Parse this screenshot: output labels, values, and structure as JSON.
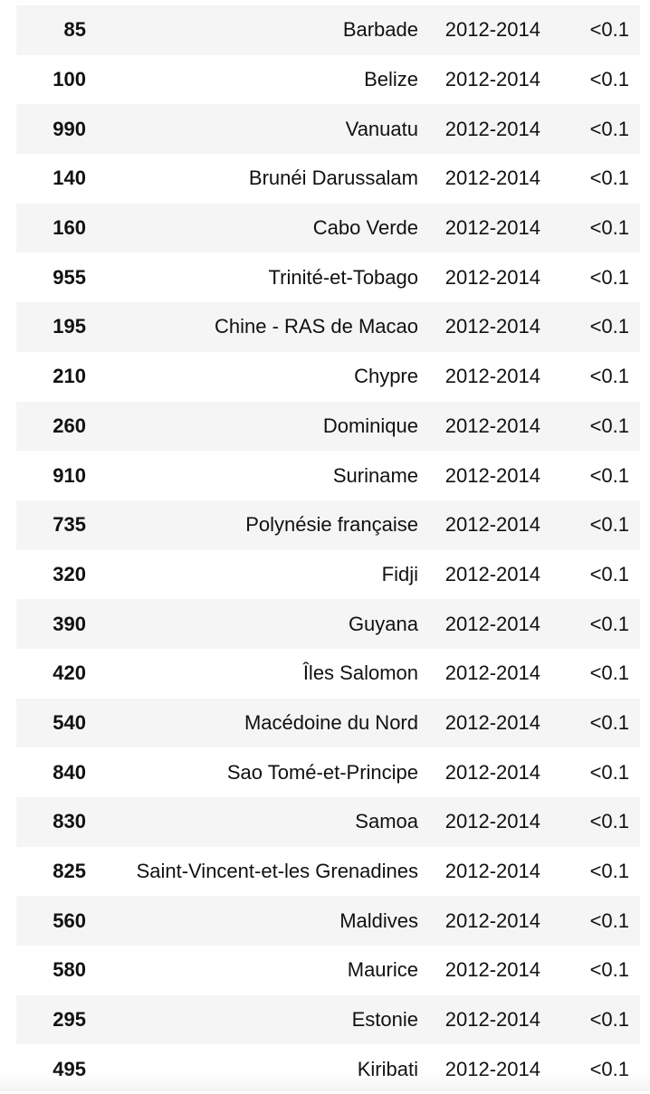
{
  "table": {
    "rows": [
      {
        "code": "85",
        "country": "Barbade",
        "period": "2012-2014",
        "value": "<0.1"
      },
      {
        "code": "100",
        "country": "Belize",
        "period": "2012-2014",
        "value": "<0.1"
      },
      {
        "code": "990",
        "country": "Vanuatu",
        "period": "2012-2014",
        "value": "<0.1"
      },
      {
        "code": "140",
        "country": "Brunéi Darussalam",
        "period": "2012-2014",
        "value": "<0.1"
      },
      {
        "code": "160",
        "country": "Cabo Verde",
        "period": "2012-2014",
        "value": "<0.1"
      },
      {
        "code": "955",
        "country": "Trinité-et-Tobago",
        "period": "2012-2014",
        "value": "<0.1"
      },
      {
        "code": "195",
        "country": "Chine - RAS de Macao",
        "period": "2012-2014",
        "value": "<0.1"
      },
      {
        "code": "210",
        "country": "Chypre",
        "period": "2012-2014",
        "value": "<0.1"
      },
      {
        "code": "260",
        "country": "Dominique",
        "period": "2012-2014",
        "value": "<0.1"
      },
      {
        "code": "910",
        "country": "Suriname",
        "period": "2012-2014",
        "value": "<0.1"
      },
      {
        "code": "735",
        "country": "Polynésie française",
        "period": "2012-2014",
        "value": "<0.1"
      },
      {
        "code": "320",
        "country": "Fidji",
        "period": "2012-2014",
        "value": "<0.1"
      },
      {
        "code": "390",
        "country": "Guyana",
        "period": "2012-2014",
        "value": "<0.1"
      },
      {
        "code": "420",
        "country": "Îles Salomon",
        "period": "2012-2014",
        "value": "<0.1"
      },
      {
        "code": "540",
        "country": "Macédoine du Nord",
        "period": "2012-2014",
        "value": "<0.1"
      },
      {
        "code": "840",
        "country": "Sao Tomé-et-Principe",
        "period": "2012-2014",
        "value": "<0.1"
      },
      {
        "code": "830",
        "country": "Samoa",
        "period": "2012-2014",
        "value": "<0.1"
      },
      {
        "code": "825",
        "country": "Saint-Vincent-et-les Grenadines",
        "period": "2012-2014",
        "value": "<0.1"
      },
      {
        "code": "560",
        "country": "Maldives",
        "period": "2012-2014",
        "value": "<0.1"
      },
      {
        "code": "580",
        "country": "Maurice",
        "period": "2012-2014",
        "value": "<0.1"
      },
      {
        "code": "295",
        "country": "Estonie",
        "period": "2012-2014",
        "value": "<0.1"
      },
      {
        "code": "495",
        "country": "Kiribati",
        "period": "2012-2014",
        "value": "<0.1"
      }
    ]
  }
}
